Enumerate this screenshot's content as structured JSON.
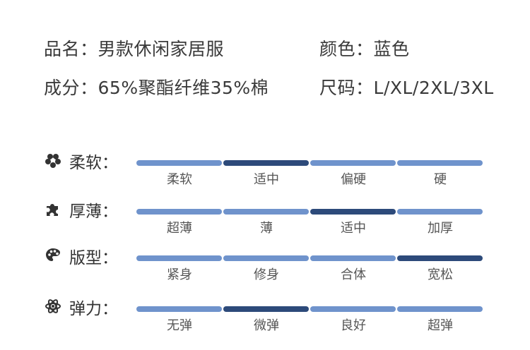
{
  "info": {
    "name_label": "品名：",
    "name_value": "男款休闲家居服",
    "color_label": "颜色：",
    "color_value": "蓝色",
    "material_label": "成分：",
    "material_value": "65%聚酯纤维35%棉",
    "size_label": "尺码：",
    "size_value": "L/XL/2XL/3XL"
  },
  "colors": {
    "bar_light": "#6f93cc",
    "bar_active": "#2d4a7a"
  },
  "ratings": [
    {
      "label": "柔软：",
      "icon": "flower-icon",
      "options": [
        "柔软",
        "适中",
        "偏硬",
        "硬"
      ],
      "selected": 1
    },
    {
      "label": "厚薄：",
      "icon": "puzzle-icon",
      "options": [
        "超薄",
        "薄",
        "适中",
        "加厚"
      ],
      "selected": 2
    },
    {
      "label": "版型：",
      "icon": "palette-icon",
      "options": [
        "紧身",
        "修身",
        "合体",
        "宽松"
      ],
      "selected": 3
    },
    {
      "label": "弹力：",
      "icon": "atom-icon",
      "options": [
        "无弹",
        "微弹",
        "良好",
        "超弹"
      ],
      "selected": 1
    }
  ]
}
